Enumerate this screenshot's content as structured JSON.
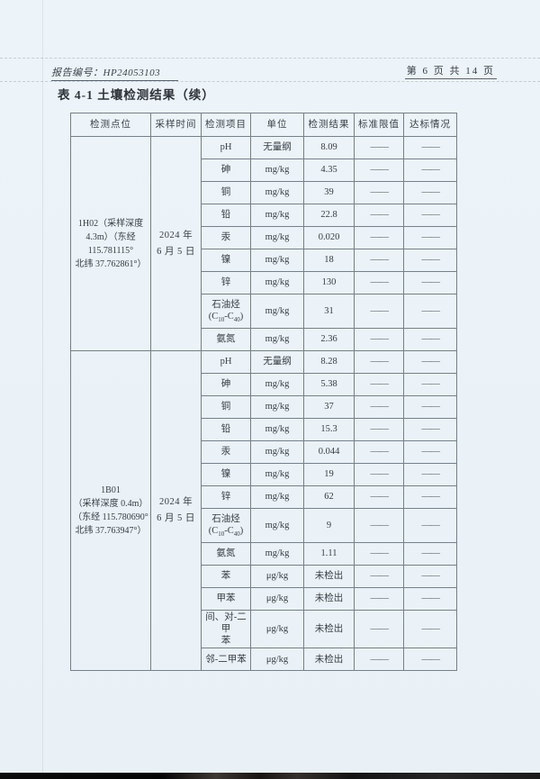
{
  "header": {
    "report_no": "报告编号：HP24053103",
    "page_info": "第 6 页 共 14 页"
  },
  "title": "表 4-1 土壤检测结果（续）",
  "table": {
    "columns": [
      "检测点位",
      "采样时间",
      "检测项目",
      "单位",
      "检测结果",
      "标准限值",
      "达标情况"
    ],
    "dash": "——",
    "groups": [
      {
        "point": "1H02（采样深度\n4.3m）（东经\n115.781115°\n北纬 37.762861°）",
        "time": "2024 年\n6 月 5 日",
        "rows": [
          {
            "item": "pH",
            "unit": "无量纲",
            "result": "8.09",
            "limit": "——",
            "status": "——"
          },
          {
            "item": "砷",
            "unit": "mg/kg",
            "result": "4.35",
            "limit": "——",
            "status": "——"
          },
          {
            "item": "铜",
            "unit": "mg/kg",
            "result": "39",
            "limit": "——",
            "status": "——"
          },
          {
            "item": "铅",
            "unit": "mg/kg",
            "result": "22.8",
            "limit": "——",
            "status": "——"
          },
          {
            "item": "汞",
            "unit": "mg/kg",
            "result": "0.020",
            "limit": "——",
            "status": "——"
          },
          {
            "item": "镍",
            "unit": "mg/kg",
            "result": "18",
            "limit": "——",
            "status": "——"
          },
          {
            "item": "锌",
            "unit": "mg/kg",
            "result": "130",
            "limit": "——",
            "status": "——"
          },
          {
            "item": "石油烃\n(C~10~-C~40~)",
            "unit": "mg/kg",
            "result": "31",
            "limit": "——",
            "status": "——"
          },
          {
            "item": "氨氮",
            "unit": "mg/kg",
            "result": "2.36",
            "limit": "——",
            "status": "——"
          }
        ]
      },
      {
        "point": "1B01\n（采样深度 0.4m）\n（东经 115.780690°\n北纬 37.763947°）",
        "time": "2024 年\n6 月 5 日",
        "rows": [
          {
            "item": "pH",
            "unit": "无量纲",
            "result": "8.28",
            "limit": "——",
            "status": "——"
          },
          {
            "item": "砷",
            "unit": "mg/kg",
            "result": "5.38",
            "limit": "——",
            "status": "——"
          },
          {
            "item": "铜",
            "unit": "mg/kg",
            "result": "37",
            "limit": "——",
            "status": "——"
          },
          {
            "item": "铅",
            "unit": "mg/kg",
            "result": "15.3",
            "limit": "——",
            "status": "——"
          },
          {
            "item": "汞",
            "unit": "mg/kg",
            "result": "0.044",
            "limit": "——",
            "status": "——"
          },
          {
            "item": "镍",
            "unit": "mg/kg",
            "result": "19",
            "limit": "——",
            "status": "——"
          },
          {
            "item": "锌",
            "unit": "mg/kg",
            "result": "62",
            "limit": "——",
            "status": "——"
          },
          {
            "item": "石油烃\n(C~10~-C~40~)",
            "unit": "mg/kg",
            "result": "9",
            "limit": "——",
            "status": "——"
          },
          {
            "item": "氨氮",
            "unit": "mg/kg",
            "result": "1.11",
            "limit": "——",
            "status": "——"
          },
          {
            "item": "苯",
            "unit": "μg/kg",
            "result": "未检出",
            "limit": "——",
            "status": "——"
          },
          {
            "item": "甲苯",
            "unit": "μg/kg",
            "result": "未检出",
            "limit": "——",
            "status": "——"
          },
          {
            "item": "间、对-二甲\n苯",
            "unit": "μg/kg",
            "result": "未检出",
            "limit": "——",
            "status": "——"
          },
          {
            "item": "邻-二甲苯",
            "unit": "μg/kg",
            "result": "未检出",
            "limit": "——",
            "status": "——"
          }
        ]
      }
    ]
  },
  "colors": {
    "paper": "#ecf3f8",
    "ink": "#363d44",
    "border": "#76808a"
  }
}
